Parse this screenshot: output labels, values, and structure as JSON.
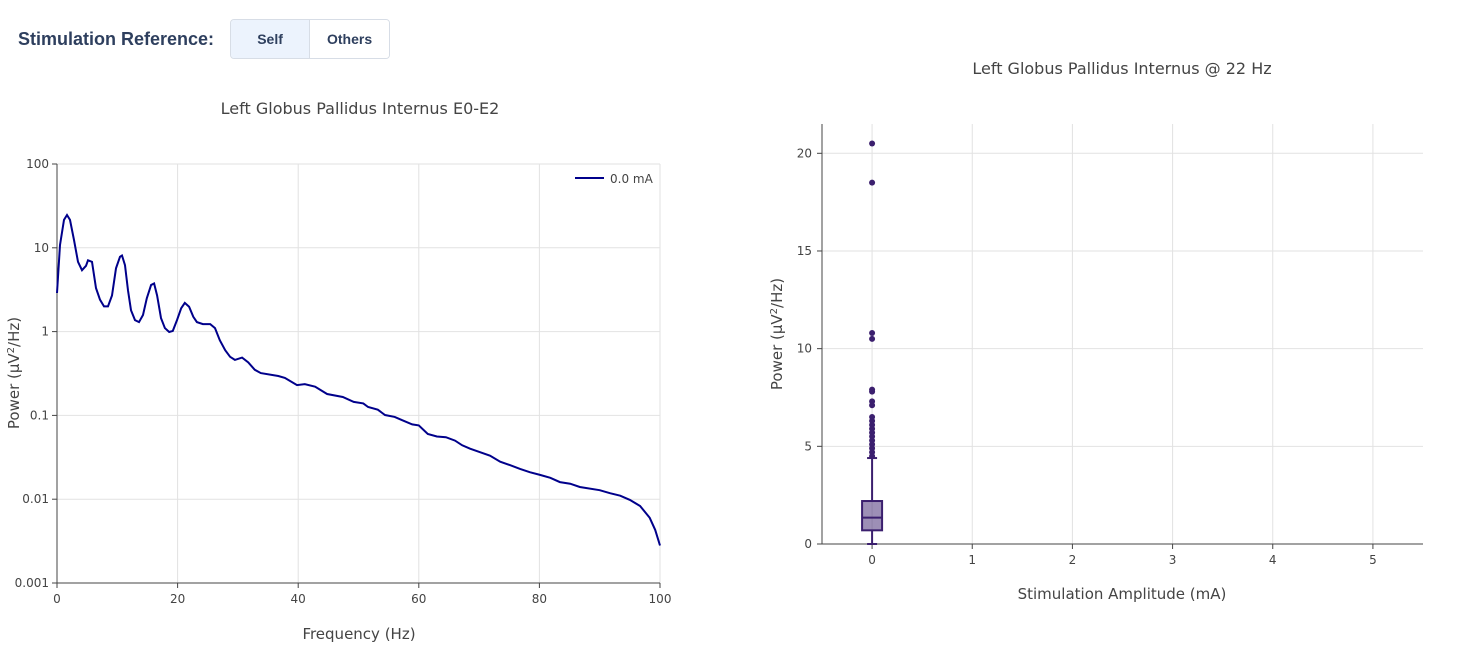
{
  "controls": {
    "label": "Stimulation Reference:",
    "options": [
      "Self",
      "Others"
    ],
    "selected": "Self"
  },
  "chart_data": [
    {
      "type": "line",
      "title": "Left Globus Pallidus Internus E0-E2",
      "xlabel": "Frequency (Hz)",
      "ylabel": "Power (µV²/Hz)",
      "xlim": [
        0,
        100
      ],
      "ylim": [
        0.001,
        100
      ],
      "yscale": "log",
      "xticks": [
        "0",
        "20",
        "40",
        "60",
        "80",
        "100"
      ],
      "yticks": [
        "0.001",
        "0.01",
        "0.1",
        "1",
        "10",
        "100"
      ],
      "grid": true,
      "legend": "top-right",
      "color": "#00008b",
      "series": [
        {
          "name": "0.0 mA",
          "x": [
            0,
            0.5,
            1.16,
            1.66,
            2.16,
            2.82,
            3.48,
            4.15,
            4.81,
            5.14,
            5.8,
            6.47,
            7.13,
            7.8,
            8.46,
            9.12,
            9.78,
            10.45,
            10.78,
            11.28,
            11.77,
            12.27,
            12.94,
            13.6,
            14.26,
            14.9,
            15.6,
            16.1,
            16.6,
            17.25,
            17.9,
            18.6,
            19.2,
            19.9,
            20.6,
            21.2,
            21.9,
            22.6,
            23.2,
            24.2,
            25.4,
            26.2,
            27.0,
            27.9,
            28.7,
            29.5,
            30.7,
            31.7,
            32.8,
            33.8,
            36.7,
            37.8,
            39.8,
            41.1,
            42.8,
            44.8,
            47.4,
            49.2,
            50.8,
            51.6,
            53.2,
            54.4,
            56.0,
            57.2,
            58.9,
            60.0,
            61.5,
            63.0,
            64.5,
            66.0,
            67.2,
            68.5,
            70.1,
            71.8,
            73.5,
            75.1,
            76.8,
            78.4,
            80.1,
            81.8,
            83.4,
            85.1,
            86.7,
            90.0,
            91.7,
            93.4,
            95.0,
            96.7,
            98.3,
            99.2,
            100
          ],
          "y": [
            2.89,
            10.8,
            21.5,
            24.6,
            21.5,
            12.4,
            6.8,
            5.4,
            6.1,
            7.1,
            6.8,
            3.3,
            2.4,
            2.0,
            2.0,
            2.7,
            5.7,
            7.8,
            8.1,
            6.2,
            3.1,
            1.8,
            1.37,
            1.3,
            1.58,
            2.5,
            3.6,
            3.75,
            2.7,
            1.45,
            1.1,
            0.99,
            1.02,
            1.37,
            1.9,
            2.2,
            1.98,
            1.5,
            1.3,
            1.23,
            1.23,
            1.1,
            0.79,
            0.6,
            0.5,
            0.46,
            0.49,
            0.43,
            0.35,
            0.32,
            0.295,
            0.28,
            0.23,
            0.236,
            0.22,
            0.18,
            0.166,
            0.145,
            0.139,
            0.126,
            0.117,
            0.101,
            0.096,
            0.088,
            0.078,
            0.076,
            0.06,
            0.056,
            0.055,
            0.05,
            0.044,
            0.04,
            0.0365,
            0.033,
            0.028,
            0.0255,
            0.023,
            0.021,
            0.0195,
            0.018,
            0.016,
            0.0153,
            0.014,
            0.0128,
            0.0118,
            0.011,
            0.0098,
            0.0083,
            0.006,
            0.0043,
            0.0028
          ]
        }
      ]
    },
    {
      "type": "box",
      "title": "Left Globus Pallidus Internus @ 22 Hz",
      "xlabel": "Stimulation Amplitude (mA)",
      "ylabel": "Power (µV²/Hz)",
      "xlim": [
        -0.5,
        5.5
      ],
      "ylim": [
        0,
        21.5
      ],
      "xticks": [
        "0",
        "1",
        "2",
        "3",
        "4",
        "5"
      ],
      "yticks": [
        "0",
        "5",
        "10",
        "15",
        "20"
      ],
      "grid": true,
      "color": "#3b1f6e",
      "boxes": [
        {
          "x": 0,
          "min": 0,
          "q1": 0.7,
          "median": 1.35,
          "q3": 2.2,
          "upper_whisker": 4.4,
          "outliers": [
            20.5,
            18.5,
            10.8,
            10.5,
            7.9,
            7.8,
            7.3,
            7.1,
            6.5,
            6.3,
            6.1,
            5.9,
            5.7,
            5.5,
            5.3,
            5.1,
            4.9,
            4.7,
            4.5
          ]
        }
      ]
    }
  ]
}
